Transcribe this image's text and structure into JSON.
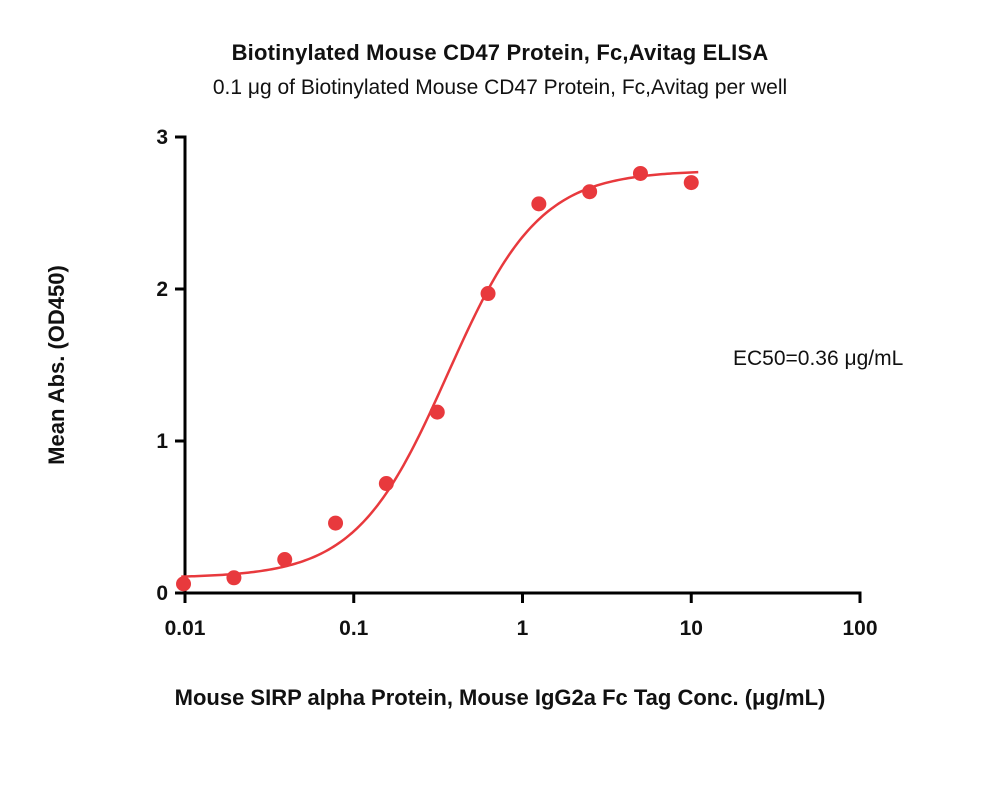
{
  "chart_data": {
    "type": "scatter",
    "title": "Biotinylated Mouse CD47 Protein, Fc,Avitag ELISA",
    "subtitle": "0.1 μg of Biotinylated Mouse CD47 Protein, Fc,Avitag per well",
    "xlabel": "Mouse SIRP alpha Protein, Mouse IgG2a Fc Tag Conc. (μg/mL)",
    "ylabel": "Mean Abs. (OD450)",
    "ec50_label": "EC50=0.36 μg/mL",
    "xscale": "log10",
    "xlim": [
      0.01,
      100
    ],
    "ylim": [
      0,
      3
    ],
    "grid": false,
    "legend": "none",
    "x_ticks": [
      {
        "v": 0.01,
        "label": "0.01"
      },
      {
        "v": 0.1,
        "label": "0.1"
      },
      {
        "v": 1,
        "label": "1"
      },
      {
        "v": 10,
        "label": "10"
      },
      {
        "v": 100,
        "label": "100"
      }
    ],
    "y_ticks": [
      {
        "v": 0,
        "label": "0"
      },
      {
        "v": 1,
        "label": "1"
      },
      {
        "v": 2,
        "label": "2"
      },
      {
        "v": 3,
        "label": "3"
      }
    ],
    "points": [
      {
        "x": 0.0098,
        "y": 0.06
      },
      {
        "x": 0.0195,
        "y": 0.1
      },
      {
        "x": 0.039,
        "y": 0.22
      },
      {
        "x": 0.078,
        "y": 0.46
      },
      {
        "x": 0.156,
        "y": 0.72
      },
      {
        "x": 0.3125,
        "y": 1.19
      },
      {
        "x": 0.625,
        "y": 1.97
      },
      {
        "x": 1.25,
        "y": 2.56
      },
      {
        "x": 2.5,
        "y": 2.64
      },
      {
        "x": 5,
        "y": 2.76
      },
      {
        "x": 10,
        "y": 2.7
      }
    ],
    "fit": {
      "model": "4PL",
      "bottom": 0.1,
      "top": 2.78,
      "ec50": 0.36,
      "hill": 1.6,
      "x_start": 0.0095,
      "x_end": 11
    },
    "colors": {
      "series": "#e8393d",
      "axis": "#000000",
      "text": "#111111"
    }
  }
}
